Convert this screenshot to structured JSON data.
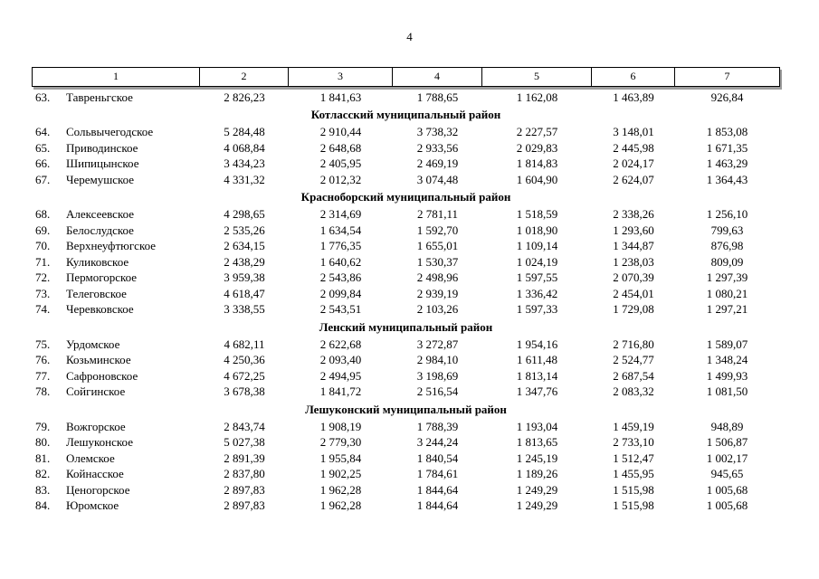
{
  "page": {
    "number": "4"
  },
  "table": {
    "headers": [
      "1",
      "2",
      "3",
      "4",
      "5",
      "6",
      "7"
    ],
    "sections": [
      {
        "title": "",
        "rows": [
          {
            "num": "63.",
            "name": "Тавреньгское",
            "values": [
              "2 826,23",
              "1 841,63",
              "1 788,65",
              "1 162,08",
              "1 463,89",
              "926,84"
            ]
          }
        ]
      },
      {
        "title": "Котласский муниципальный район",
        "rows": [
          {
            "num": "64.",
            "name": "Сольвычегодское",
            "values": [
              "5 284,48",
              "2 910,44",
              "3 738,32",
              "2 227,57",
              "3 148,01",
              "1 853,08"
            ]
          },
          {
            "num": "65.",
            "name": "Приводинское",
            "values": [
              "4 068,84",
              "2 648,68",
              "2 933,56",
              "2 029,83",
              "2 445,98",
              "1 671,35"
            ]
          },
          {
            "num": "66.",
            "name": "Шипицынское",
            "values": [
              "3 434,23",
              "2 405,95",
              "2 469,19",
              "1 814,83",
              "2 024,17",
              "1 463,29"
            ]
          },
          {
            "num": "67.",
            "name": "Черемушское",
            "values": [
              "4 331,32",
              "2 012,32",
              "3 074,48",
              "1 604,90",
              "2 624,07",
              "1 364,43"
            ]
          }
        ]
      },
      {
        "title": "Красноборский муниципальный район",
        "rows": [
          {
            "num": "68.",
            "name": "Алексеевское",
            "values": [
              "4 298,65",
              "2 314,69",
              "2 781,11",
              "1 518,59",
              "2 338,26",
              "1 256,10"
            ]
          },
          {
            "num": "69.",
            "name": "Белослудское",
            "values": [
              "2 535,26",
              "1 634,54",
              "1 592,70",
              "1 018,90",
              "1 293,60",
              "799,63"
            ]
          },
          {
            "num": "70.",
            "name": "Верхнеуфтюгское",
            "values": [
              "2 634,15",
              "1 776,35",
              "1 655,01",
              "1 109,14",
              "1 344,87",
              "876,98"
            ]
          },
          {
            "num": "71.",
            "name": "Куликовское",
            "values": [
              "2 438,29",
              "1 640,62",
              "1 530,37",
              "1 024,19",
              "1 238,03",
              "809,09"
            ]
          },
          {
            "num": "72.",
            "name": "Пермогорское",
            "values": [
              "3 959,38",
              "2 543,86",
              "2 498,96",
              "1 597,55",
              "2 070,39",
              "1 297,39"
            ]
          },
          {
            "num": "73.",
            "name": "Телеговское",
            "values": [
              "4 618,47",
              "2 099,84",
              "2 939,19",
              "1 336,42",
              "2 454,01",
              "1 080,21"
            ]
          },
          {
            "num": "74.",
            "name": "Черевковское",
            "values": [
              "3 338,55",
              "2 543,51",
              "2 103,26",
              "1 597,33",
              "1 729,08",
              "1 297,21"
            ]
          }
        ]
      },
      {
        "title": "Ленский муниципальный район",
        "rows": [
          {
            "num": "75.",
            "name": "Урдомское",
            "values": [
              "4 682,11",
              "2 622,68",
              "3 272,87",
              "1 954,16",
              "2 716,80",
              "1 589,07"
            ]
          },
          {
            "num": "76.",
            "name": "Козьминское",
            "values": [
              "4 250,36",
              "2 093,40",
              "2 984,10",
              "1 611,48",
              "2 524,77",
              "1 348,24"
            ]
          },
          {
            "num": "77.",
            "name": "Сафроновское",
            "values": [
              "4 672,25",
              "2 494,95",
              "3 198,69",
              "1 813,14",
              "2 687,54",
              "1 499,93"
            ]
          },
          {
            "num": "78.",
            "name": "Сойгинское",
            "values": [
              "3 678,38",
              "1 841,72",
              "2 516,54",
              "1 347,76",
              "2 083,32",
              "1 081,50"
            ]
          }
        ]
      },
      {
        "title": "Лешуконский муниципальный район",
        "rows": [
          {
            "num": "79.",
            "name": "Вожгорское",
            "values": [
              "2 843,74",
              "1 908,19",
              "1 788,39",
              "1 193,04",
              "1 459,19",
              "948,89"
            ]
          },
          {
            "num": "80.",
            "name": "Лешуконское",
            "values": [
              "5 027,38",
              "2 779,30",
              "3 244,24",
              "1 813,65",
              "2 733,10",
              "1 506,87"
            ]
          },
          {
            "num": "81.",
            "name": "Олемское",
            "values": [
              "2 891,39",
              "1 955,84",
              "1 840,54",
              "1 245,19",
              "1 512,47",
              "1 002,17"
            ]
          },
          {
            "num": "82.",
            "name": "Койнасское",
            "values": [
              "2 837,80",
              "1 902,25",
              "1 784,61",
              "1 189,26",
              "1 455,95",
              "945,65"
            ]
          },
          {
            "num": "83.",
            "name": "Ценогорское",
            "values": [
              "2 897,83",
              "1 962,28",
              "1 844,64",
              "1 249,29",
              "1 515,98",
              "1 005,68"
            ]
          },
          {
            "num": "84.",
            "name": "Юромское",
            "values": [
              "2 897,83",
              "1 962,28",
              "1 844,64",
              "1 249,29",
              "1 515,98",
              "1 005,68"
            ]
          }
        ]
      }
    ]
  }
}
